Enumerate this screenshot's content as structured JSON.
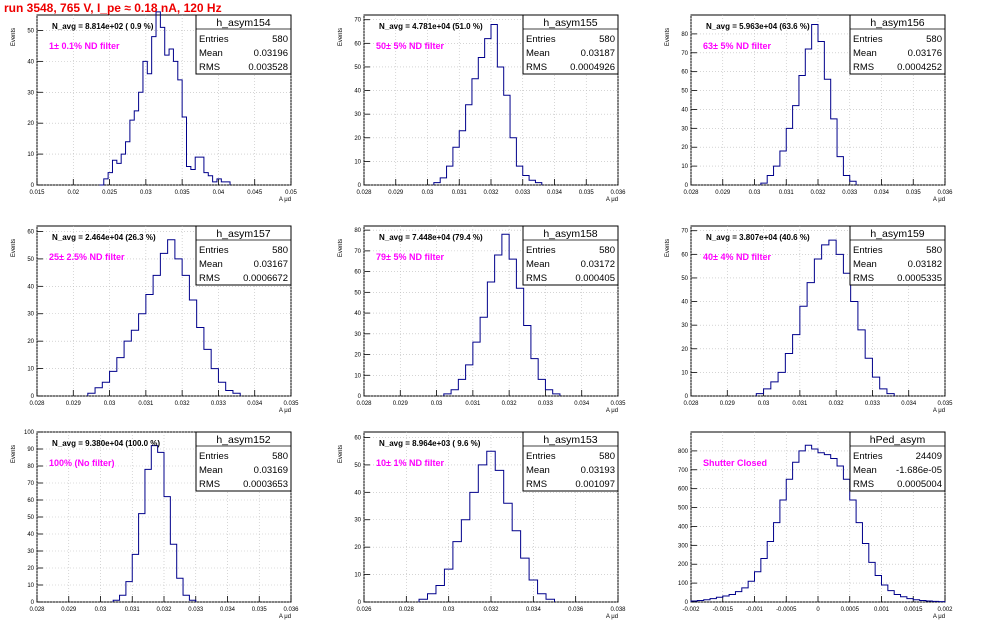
{
  "page": {
    "title": "run 3548,   765 V, I_pe ≈ 0.18 nA, 120 Hz"
  },
  "style": {
    "histogram_color": "#00008b",
    "annotation_color": "#ff00ff",
    "title_color": "#ee0000"
  },
  "chart_data": [
    {
      "type": "histogram",
      "name": "h_asym154",
      "stats": {
        "entries_label": "Entries",
        "entries": "580",
        "mean_label": "Mean",
        "mean": "0.03196",
        "rms_label": "RMS",
        "rms": "0.003528"
      },
      "navg": "N_avg = 8.814e+02 ( 0.9 %)",
      "filter": "1± 0.1% ND filter",
      "ylabel": "Events",
      "xlabel": "A μd",
      "xlim": [
        0.015,
        0.05
      ],
      "xticks": [
        "0.015",
        "0.02",
        "0.025",
        "0.03",
        "0.035",
        "0.04",
        "0.045",
        "0.05"
      ],
      "ylim": [
        0,
        55
      ],
      "yticks": [
        "0",
        "10",
        "20",
        "30",
        "40",
        "50"
      ],
      "bins": [
        0.0236,
        0.0242,
        0.0248,
        0.0254,
        0.026,
        0.0266,
        0.0272,
        0.0278,
        0.0284,
        0.029,
        0.0296,
        0.0302,
        0.0308,
        0.0314,
        0.032,
        0.0326,
        0.0332,
        0.0338,
        0.0344,
        0.035,
        0.0356,
        0.0362,
        0.0368,
        0.0374,
        0.038,
        0.0386,
        0.0392,
        0.0398,
        0.0404,
        0.041
      ],
      "counts": [
        0,
        2,
        4,
        8,
        7,
        10,
        14,
        21,
        24,
        30,
        40,
        36,
        48,
        56,
        51,
        42,
        44,
        40,
        34,
        22,
        6,
        5,
        9,
        9,
        4,
        3,
        1,
        2,
        1,
        1
      ]
    },
    {
      "type": "histogram",
      "name": "h_asym155",
      "stats": {
        "entries_label": "Entries",
        "entries": "580",
        "mean_label": "Mean",
        "mean": "0.03187",
        "rms_label": "RMS",
        "rms": "0.0004926"
      },
      "navg": "N_avg = 4.781e+04 (51.0 %)",
      "filter": "50± 5% ND filter",
      "ylabel": "Events",
      "xlabel": "A μd",
      "xlim": [
        0.028,
        0.036
      ],
      "xticks": [
        "0.028",
        "0.029",
        "0.03",
        "0.031",
        "0.032",
        "0.033",
        "0.034",
        "0.035",
        "0.036"
      ],
      "ylim": [
        0,
        72
      ],
      "yticks": [
        "0",
        "10",
        "20",
        "30",
        "40",
        "50",
        "60",
        "70"
      ],
      "bins": [
        0.0302,
        0.0304,
        0.0306,
        0.0308,
        0.031,
        0.0312,
        0.0314,
        0.0316,
        0.0318,
        0.032,
        0.0322,
        0.0324,
        0.0326,
        0.0328,
        0.033,
        0.0332,
        0.0334
      ],
      "counts": [
        1,
        3,
        8,
        16,
        23,
        34,
        45,
        54,
        62,
        68,
        50,
        38,
        20,
        8,
        4,
        2,
        1
      ]
    },
    {
      "type": "histogram",
      "name": "h_asym156",
      "stats": {
        "entries_label": "Entries",
        "entries": "580",
        "mean_label": "Mean",
        "mean": "0.03176",
        "rms_label": "RMS",
        "rms": "0.0004252"
      },
      "navg": "N_avg = 5.963e+04 (63.6 %)",
      "filter": "63± 5% ND filter",
      "ylabel": "Events",
      "xlabel": "A μd",
      "xlim": [
        0.028,
        0.036
      ],
      "xticks": [
        "0.028",
        "0.029",
        "0.03",
        "0.031",
        "0.032",
        "0.033",
        "0.034",
        "0.035",
        "0.036"
      ],
      "ylim": [
        0,
        90
      ],
      "yticks": [
        "0",
        "10",
        "20",
        "30",
        "40",
        "50",
        "60",
        "70",
        "80"
      ],
      "bins": [
        0.0302,
        0.0304,
        0.0306,
        0.0308,
        0.031,
        0.0312,
        0.0314,
        0.0316,
        0.0318,
        0.032,
        0.0322,
        0.0324,
        0.0326,
        0.0328,
        0.033
      ],
      "counts": [
        1,
        5,
        10,
        18,
        30,
        42,
        58,
        72,
        85,
        76,
        56,
        35,
        15,
        5,
        2
      ]
    },
    {
      "type": "histogram",
      "name": "h_asym157",
      "stats": {
        "entries_label": "Entries",
        "entries": "580",
        "mean_label": "Mean",
        "mean": "0.03167",
        "rms_label": "RMS",
        "rms": "0.0006672"
      },
      "navg": "N_avg = 2.464e+04 (26.3 %)",
      "filter": "25± 2.5% ND filter",
      "ylabel": "Events",
      "xlabel": "A μd",
      "xlim": [
        0.028,
        0.035
      ],
      "xticks": [
        "0.028",
        "0.029",
        "0.03",
        "0.031",
        "0.032",
        "0.033",
        "0.034",
        "0.035"
      ],
      "ylim": [
        0,
        62
      ],
      "yticks": [
        "0",
        "10",
        "20",
        "30",
        "40",
        "50",
        "60"
      ],
      "bins": [
        0.0294,
        0.0296,
        0.0298,
        0.03,
        0.0302,
        0.0304,
        0.0306,
        0.0308,
        0.031,
        0.0312,
        0.0314,
        0.0316,
        0.0318,
        0.032,
        0.0322,
        0.0324,
        0.0326,
        0.0328,
        0.033,
        0.0332,
        0.0334
      ],
      "counts": [
        1,
        3,
        5,
        9,
        14,
        20,
        24,
        30,
        37,
        44,
        52,
        57,
        50,
        44,
        35,
        25,
        17,
        10,
        5,
        2,
        1
      ]
    },
    {
      "type": "histogram",
      "name": "h_asym158",
      "stats": {
        "entries_label": "Entries",
        "entries": "580",
        "mean_label": "Mean",
        "mean": "0.03172",
        "rms_label": "RMS",
        "rms": "0.000405"
      },
      "navg": "N_avg = 7.448e+04 (79.4 %)",
      "filter": "79± 5% ND filter",
      "ylabel": "Events",
      "xlabel": "A μd",
      "xlim": [
        0.028,
        0.035
      ],
      "xticks": [
        "0.028",
        "0.029",
        "0.03",
        "0.031",
        "0.032",
        "0.033",
        "0.034",
        "0.035"
      ],
      "ylim": [
        0,
        82
      ],
      "yticks": [
        "0",
        "10",
        "20",
        "30",
        "40",
        "50",
        "60",
        "70",
        "80"
      ],
      "bins": [
        0.0302,
        0.0304,
        0.0306,
        0.0308,
        0.031,
        0.0312,
        0.0314,
        0.0316,
        0.0318,
        0.032,
        0.0322,
        0.0324,
        0.0326,
        0.0328,
        0.033,
        0.0332
      ],
      "counts": [
        1,
        3,
        8,
        15,
        26,
        38,
        55,
        68,
        78,
        66,
        52,
        34,
        18,
        8,
        3,
        1
      ]
    },
    {
      "type": "histogram",
      "name": "h_asym159",
      "stats": {
        "entries_label": "Entries",
        "entries": "580",
        "mean_label": "Mean",
        "mean": "0.03182",
        "rms_label": "RMS",
        "rms": "0.0005335"
      },
      "navg": "N_avg = 3.807e+04 (40.6 %)",
      "filter": "40± 4% ND filter",
      "ylabel": "Events",
      "xlabel": "A μd",
      "xlim": [
        0.028,
        0.035
      ],
      "xticks": [
        "0.028",
        "0.029",
        "0.03",
        "0.031",
        "0.032",
        "0.033",
        "0.034",
        "0.035"
      ],
      "ylim": [
        0,
        72
      ],
      "yticks": [
        "0",
        "10",
        "20",
        "30",
        "40",
        "50",
        "60",
        "70"
      ],
      "bins": [
        0.0298,
        0.03,
        0.0302,
        0.0304,
        0.0306,
        0.0308,
        0.031,
        0.0312,
        0.0314,
        0.0316,
        0.0318,
        0.032,
        0.0322,
        0.0324,
        0.0326,
        0.0328,
        0.033,
        0.0332,
        0.0334
      ],
      "counts": [
        1,
        3,
        6,
        10,
        18,
        26,
        38,
        48,
        58,
        64,
        66,
        60,
        52,
        40,
        28,
        16,
        8,
        3,
        1
      ]
    },
    {
      "type": "histogram",
      "name": "h_asym152",
      "stats": {
        "entries_label": "Entries",
        "entries": "580",
        "mean_label": "Mean",
        "mean": "0.03169",
        "rms_label": "RMS",
        "rms": "0.0003653"
      },
      "navg": "N_avg = 9.380e+04 (100.0 %)",
      "filter": "100% (No filter)",
      "ylabel": "Events",
      "xlabel": "A μd",
      "xlim": [
        0.028,
        0.036
      ],
      "xticks": [
        "0.028",
        "0.029",
        "0.03",
        "0.031",
        "0.032",
        "0.033",
        "0.034",
        "0.035",
        "0.036"
      ],
      "ylim": [
        0,
        100
      ],
      "yticks": [
        "0",
        "10",
        "20",
        "30",
        "40",
        "50",
        "60",
        "70",
        "80",
        "90",
        "100"
      ],
      "bins": [
        0.0304,
        0.0306,
        0.0308,
        0.031,
        0.0312,
        0.0314,
        0.0316,
        0.0318,
        0.032,
        0.0322,
        0.0324,
        0.0326,
        0.0328
      ],
      "counts": [
        1,
        4,
        12,
        28,
        52,
        78,
        92,
        88,
        62,
        34,
        14,
        4,
        1
      ]
    },
    {
      "type": "histogram",
      "name": "h_asym153",
      "stats": {
        "entries_label": "Entries",
        "entries": "580",
        "mean_label": "Mean",
        "mean": "0.03193",
        "rms_label": "RMS",
        "rms": "0.001097"
      },
      "navg": "N_avg = 8.964e+03 ( 9.6 %)",
      "filter": "10± 1% ND filter",
      "ylabel": "Events",
      "xlabel": "A μd",
      "xlim": [
        0.026,
        0.038
      ],
      "xticks": [
        "0.026",
        "0.028",
        "0.03",
        "0.032",
        "0.034",
        "0.036",
        "0.038"
      ],
      "ylim": [
        0,
        62
      ],
      "yticks": [
        "0",
        "10",
        "20",
        "30",
        "40",
        "50",
        "60"
      ],
      "bins": [
        0.0286,
        0.029,
        0.0294,
        0.0298,
        0.0302,
        0.0306,
        0.031,
        0.0314,
        0.0318,
        0.0322,
        0.0326,
        0.033,
        0.0334,
        0.0338,
        0.0342,
        0.0346
      ],
      "counts": [
        1,
        3,
        6,
        12,
        22,
        30,
        40,
        50,
        55,
        48,
        36,
        26,
        16,
        8,
        3,
        1
      ]
    },
    {
      "type": "histogram",
      "name": "hPed_asym",
      "stats": {
        "entries_label": "Entries",
        "entries": "24409",
        "mean_label": "Mean",
        "mean": "-1.686e-05",
        "rms_label": "RMS",
        "rms": "0.0005004"
      },
      "navg": "",
      "filter": "Shutter Closed",
      "ylabel": "",
      "xlabel": "A μd",
      "xlim": [
        -0.002,
        0.002
      ],
      "xticks": [
        "-0.002",
        "-0.0015",
        "-0.001",
        "-0.0005",
        "0",
        "0.0005",
        "0.001",
        "0.0015",
        "0.002"
      ],
      "ylim": [
        0,
        900
      ],
      "yticks": [
        "0",
        "100",
        "200",
        "300",
        "400",
        "500",
        "600",
        "700",
        "800"
      ],
      "bins": [
        -0.002,
        -0.0019,
        -0.0018,
        -0.0017,
        -0.0016,
        -0.0015,
        -0.0014,
        -0.0013,
        -0.0012,
        -0.0011,
        -0.001,
        -0.0009,
        -0.0008,
        -0.0007,
        -0.0006,
        -0.0005,
        -0.0004,
        -0.0003,
        -0.0002,
        -0.0001,
        0.0,
        0.0001,
        0.0002,
        0.0003,
        0.0004,
        0.0005,
        0.0006,
        0.0007,
        0.0008,
        0.0009,
        0.001,
        0.0011,
        0.0012,
        0.0013,
        0.0014,
        0.0015,
        0.0016,
        0.0017,
        0.0018,
        0.0019
      ],
      "counts": [
        5,
        8,
        12,
        18,
        25,
        32,
        40,
        55,
        75,
        110,
        160,
        230,
        320,
        420,
        540,
        650,
        740,
        800,
        830,
        810,
        790,
        780,
        760,
        720,
        650,
        540,
        420,
        310,
        210,
        140,
        90,
        60,
        40,
        28,
        18,
        12,
        8,
        5,
        3,
        2
      ]
    }
  ]
}
